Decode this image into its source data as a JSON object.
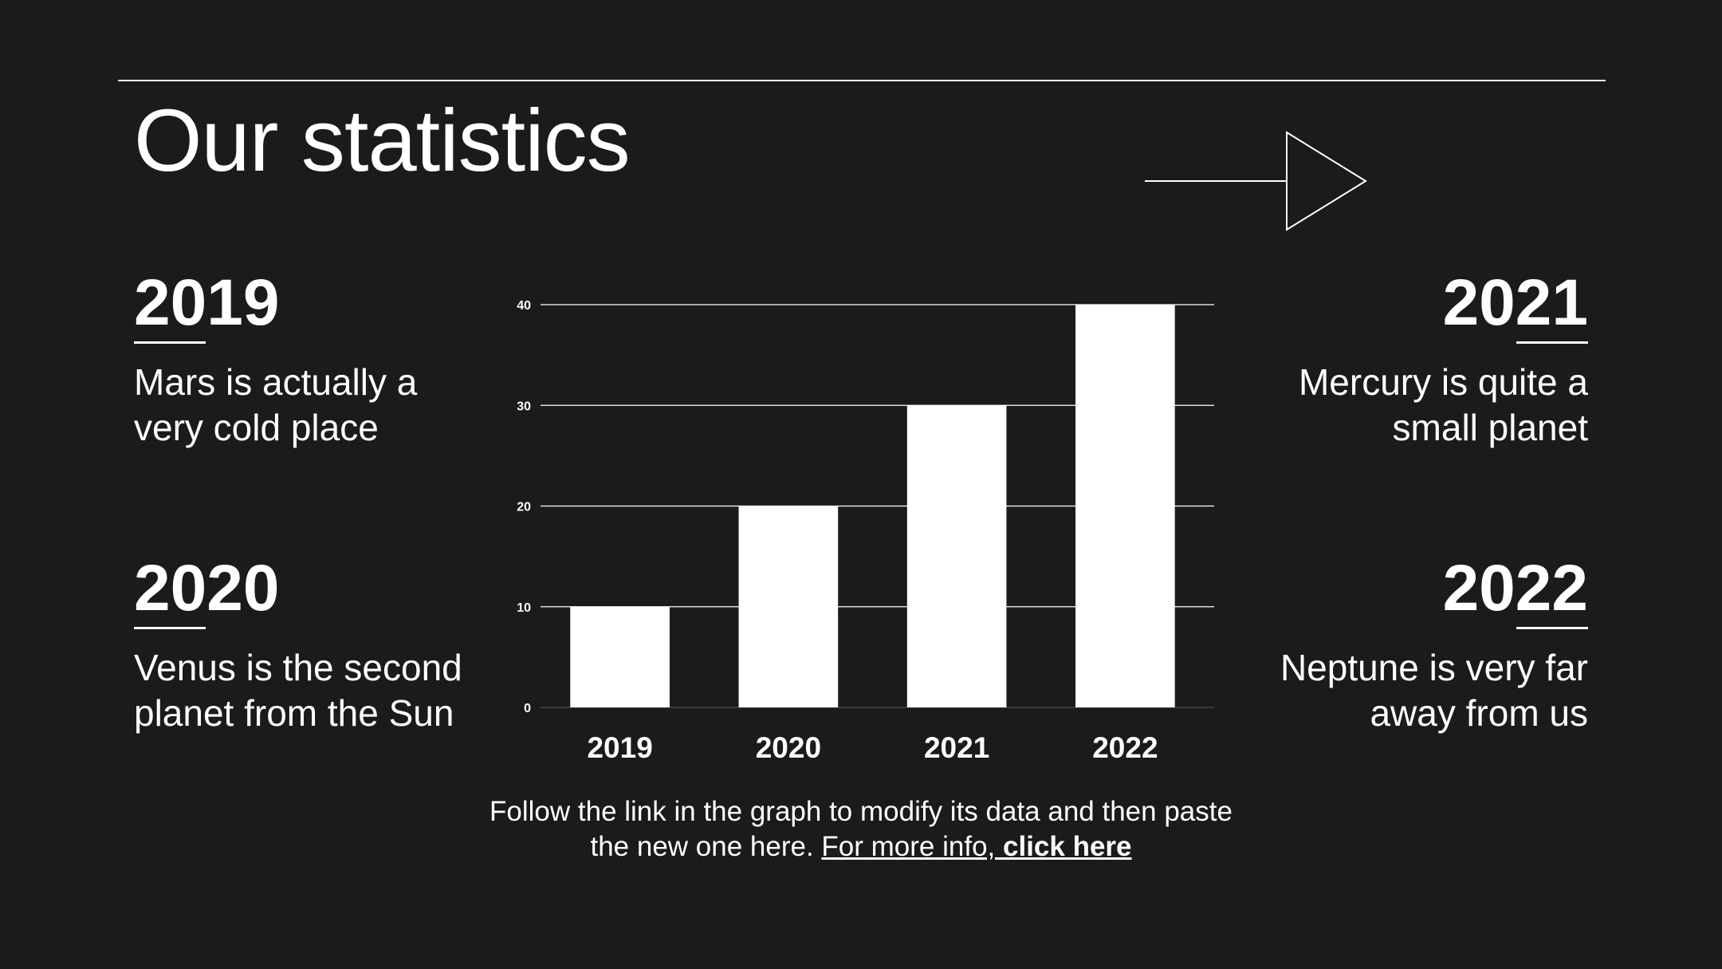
{
  "slide": {
    "title": "Our statistics"
  },
  "stats": [
    {
      "year": "2019",
      "text": "Mars is actually a\nvery cold place"
    },
    {
      "year": "2020",
      "text": "Venus is the second\nplanet from the Sun"
    },
    {
      "year": "2021",
      "text": "Mercury is quite a\nsmall planet"
    },
    {
      "year": "2022",
      "text": "Neptune is very far\naway from us"
    }
  ],
  "footnote": {
    "text": "Follow the link in the graph to modify its data and then paste the new one here. ",
    "link_prefix": "For more info, ",
    "link_bold": "click here"
  },
  "colors": {
    "background": "#1b1b1b",
    "foreground": "#ffffff"
  },
  "chart_data": {
    "type": "bar",
    "categories": [
      "2019",
      "2020",
      "2021",
      "2022"
    ],
    "values": [
      10,
      20,
      30,
      40
    ],
    "yticks": [
      0,
      10,
      20,
      30,
      40
    ],
    "ylim": [
      0,
      40
    ],
    "title": "",
    "xlabel": "",
    "ylabel": "",
    "grid": true,
    "bar_color": "#ffffff"
  }
}
